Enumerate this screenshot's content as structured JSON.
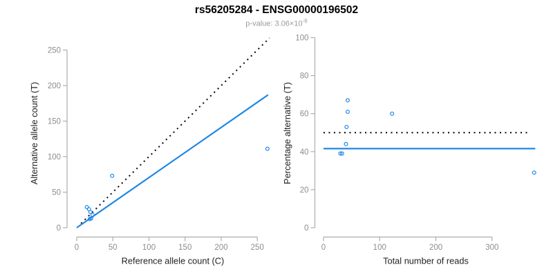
{
  "header": {
    "title": "rs56205284 - ENSG00000196502",
    "subtitle_text": "p-value: 3.06×10",
    "subtitle_exponent": "-6"
  },
  "colors": {
    "accent_blue": "#1E87E6",
    "dotted_line": "#000000",
    "axis_line": "#ADADAD",
    "tick_label": "#8C8C8C",
    "axis_title": "#222222",
    "subtitle_gray": "#999999"
  },
  "chart_data": [
    {
      "type": "scatter",
      "panel": "left",
      "xlabel": "Reference allele count (C)",
      "ylabel": "Alternative allele count (T)",
      "xlim": [
        -11,
        276
      ],
      "ylim": [
        -11,
        276
      ],
      "grid": false,
      "legend": null,
      "marker": "open-circle",
      "xticks": [
        0,
        50,
        100,
        150,
        200,
        250
      ],
      "yticks": [
        0,
        50,
        100,
        150,
        200,
        250
      ],
      "points": [
        [
          14,
          29
        ],
        [
          17,
          26
        ],
        [
          19,
          22
        ],
        [
          22,
          18
        ],
        [
          18,
          12
        ],
        [
          20,
          13
        ],
        [
          49,
          73
        ],
        [
          264,
          111
        ]
      ],
      "lines": [
        {
          "name": "identity-line",
          "style": "dotted",
          "color_key": "dotted_line",
          "x1": 6,
          "y1": 6,
          "x2": 267,
          "y2": 267
        },
        {
          "name": "regression-line",
          "style": "solid",
          "color_key": "accent_blue",
          "x1": 0,
          "y1": 0,
          "x2": 265,
          "y2": 187
        }
      ]
    },
    {
      "type": "scatter",
      "panel": "right",
      "xlabel": "Total number of reads",
      "ylabel": "Percentage alternative (T)",
      "xlim": [
        -15,
        390
      ],
      "ylim": [
        -4,
        104
      ],
      "grid": false,
      "legend": null,
      "marker": "open-circle",
      "xticks": [
        0,
        100,
        200,
        300
      ],
      "yticks": [
        0,
        20,
        40,
        60,
        80,
        100
      ],
      "points": [
        [
          43,
          67
        ],
        [
          43,
          61
        ],
        [
          41,
          53
        ],
        [
          40,
          44
        ],
        [
          30,
          39
        ],
        [
          33,
          39
        ],
        [
          122,
          60
        ],
        [
          375,
          29
        ]
      ],
      "lines": [
        {
          "name": "expected-50pct-line",
          "style": "dotted",
          "color_key": "dotted_line",
          "x1": 0,
          "y1": 50,
          "x2": 368,
          "y2": 50
        },
        {
          "name": "mean-percentage-line",
          "style": "solid",
          "color_key": "accent_blue",
          "x1": 0,
          "y1": 41.6,
          "x2": 377,
          "y2": 41.6
        }
      ]
    }
  ]
}
